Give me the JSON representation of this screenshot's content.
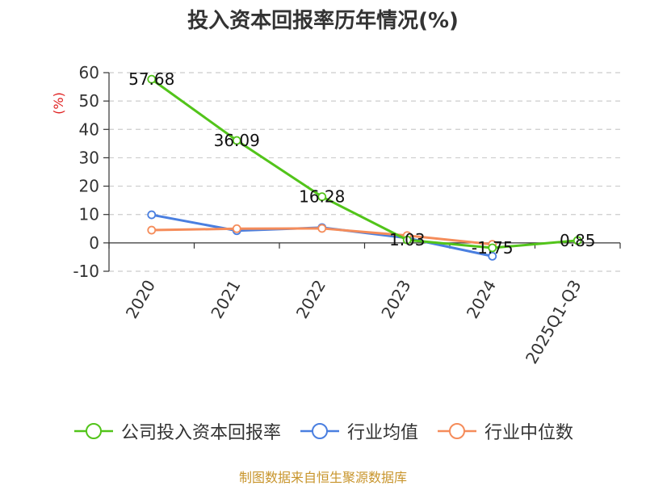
{
  "chart_data": {
    "type": "line",
    "title": "投入资本回报率历年情况(%)",
    "ylabel": "(%)",
    "categories": [
      "2020",
      "2021",
      "2022",
      "2023",
      "2024",
      "2025Q1-Q3"
    ],
    "yticks": [
      60,
      50,
      40,
      30,
      20,
      10,
      0,
      -10
    ],
    "ylim": [
      -10,
      60
    ],
    "grid": true,
    "legend_position": "bottom",
    "series": [
      {
        "name": "公司投入资本回报率",
        "color": "#52c41a",
        "values": [
          57.68,
          36.09,
          16.28,
          1.03,
          -1.75,
          0.85
        ],
        "labels": [
          "57.68",
          "36.09",
          "16.28",
          "1.03",
          "-1.75",
          "0.85"
        ]
      },
      {
        "name": "行业均值",
        "color": "#4a7fe0",
        "values": [
          9.9,
          4.3,
          5.4,
          1.7,
          -4.7,
          null
        ]
      },
      {
        "name": "行业中位数",
        "color": "#f58c5a",
        "values": [
          4.5,
          5.0,
          5.1,
          2.6,
          -0.5,
          null
        ]
      }
    ]
  },
  "source": "制图数据来自恒生聚源数据库"
}
